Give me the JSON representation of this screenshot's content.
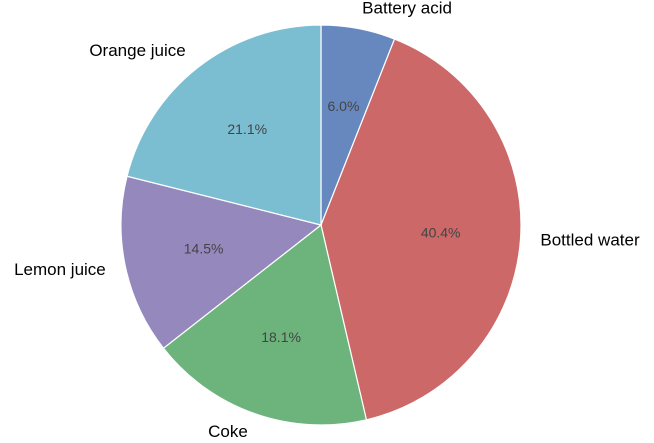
{
  "chart_data": {
    "type": "pie",
    "categories": [
      "Battery acid",
      "Bottled water",
      "Coke",
      "Lemon juice",
      "Orange juice"
    ],
    "values": [
      6.0,
      40.4,
      18.1,
      14.5,
      21.1
    ],
    "value_labels": [
      "6.0%",
      "40.4%",
      "18.1%",
      "14.5%",
      "21.1%"
    ],
    "colors": [
      "#6788be",
      "#cc6868",
      "#6db37c",
      "#9488bd",
      "#7bbdd1"
    ],
    "start_angle": 90,
    "clockwise": true
  }
}
